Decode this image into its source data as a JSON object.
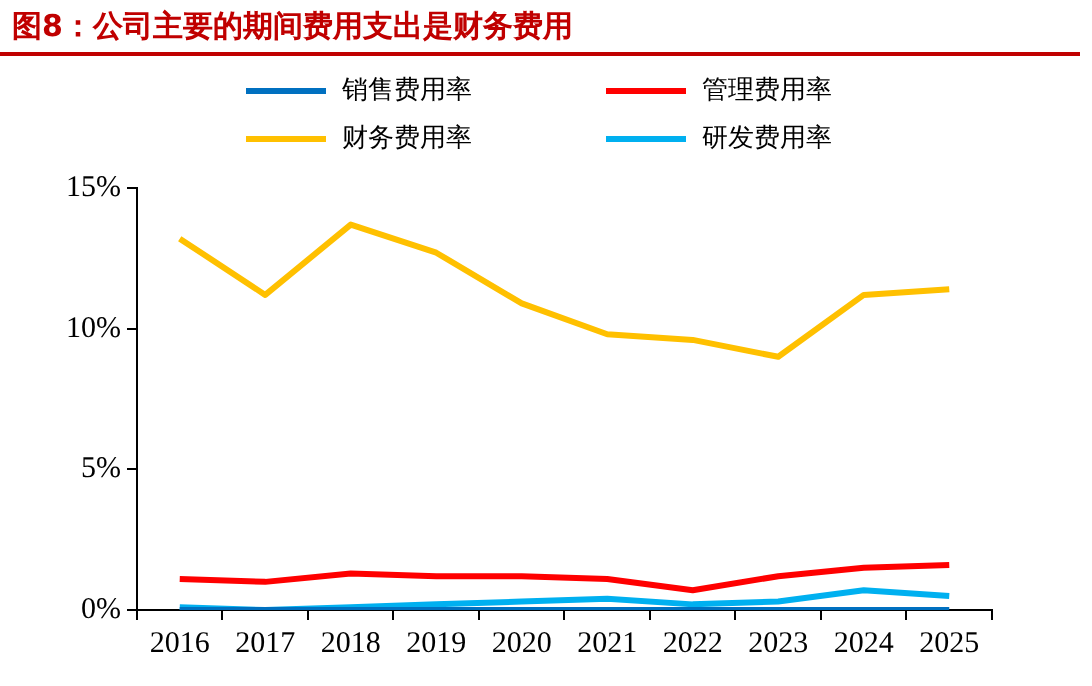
{
  "chart_data": {
    "type": "line",
    "title": "图8：公司主要的期间费用支出是财务费用",
    "categories": [
      "2016",
      "2017",
      "2018",
      "2019",
      "2020",
      "2021",
      "2022",
      "2023",
      "2024",
      "2025"
    ],
    "series": [
      {
        "name": "销售费用率",
        "color": "#0070c0",
        "values": [
          0,
          0,
          0,
          0,
          0,
          0,
          0,
          0,
          0,
          0
        ]
      },
      {
        "name": "管理费用率",
        "color": "#ff0000",
        "values": [
          1.1,
          1.0,
          1.3,
          1.2,
          1.2,
          1.1,
          0.7,
          1.2,
          1.5,
          1.6
        ]
      },
      {
        "name": "财务费用率",
        "color": "#ffc000",
        "values": [
          13.2,
          11.2,
          13.7,
          12.7,
          10.9,
          9.8,
          9.6,
          9.0,
          11.2,
          11.4
        ]
      },
      {
        "name": "研发费用率",
        "color": "#00b0f0",
        "values": [
          0.1,
          0,
          0.1,
          0.2,
          0.3,
          0.4,
          0.2,
          0.3,
          0.7,
          0.5
        ]
      }
    ],
    "ylim": [
      0,
      15
    ],
    "yticks": [
      {
        "value": 0,
        "label": "0%"
      },
      {
        "value": 5,
        "label": "5%"
      },
      {
        "value": 10,
        "label": "10%"
      },
      {
        "value": 15,
        "label": "15%"
      }
    ],
    "grid": false,
    "legend": "top",
    "marker": "none",
    "line_style": "solid"
  }
}
